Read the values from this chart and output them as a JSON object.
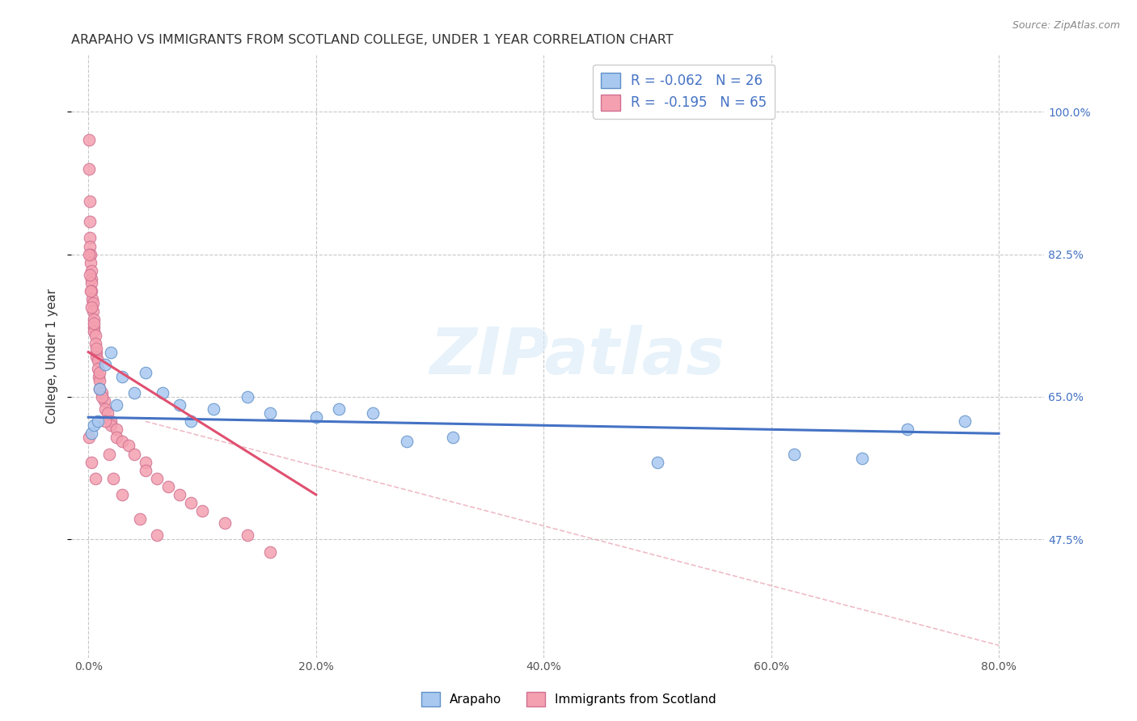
{
  "title": "ARAPAHO VS IMMIGRANTS FROM SCOTLAND COLLEGE, UNDER 1 YEAR CORRELATION CHART",
  "source": "Source: ZipAtlas.com",
  "ylabel": "College, Under 1 year",
  "x_tick_values": [
    0.0,
    20.0,
    40.0,
    60.0,
    80.0
  ],
  "y_tick_values": [
    47.5,
    65.0,
    82.5,
    100.0
  ],
  "xlim": [
    -1.5,
    84.0
  ],
  "ylim": [
    33.0,
    107.0
  ],
  "background_color": "#ffffff",
  "grid_color": "#c8c8c8",
  "blue_line_color": "#4472c4",
  "pink_line_color": "#e05070",
  "blue_dot_color": "#a8c8f0",
  "pink_dot_color": "#f4a0b0",
  "blue_dot_edge": "#6090c8",
  "pink_dot_edge": "#d07090",
  "watermark_text": "ZIPatlas",
  "blue_line_x": [
    0.0,
    80.0
  ],
  "blue_line_y": [
    62.5,
    60.5
  ],
  "pink_line_x": [
    0.0,
    20.0
  ],
  "pink_line_y": [
    70.5,
    53.0
  ],
  "diag_line_x": [
    5.0,
    80.0
  ],
  "diag_line_y": [
    62.0,
    34.5
  ],
  "arapaho_x": [
    0.3,
    0.5,
    0.8,
    1.0,
    1.5,
    2.0,
    3.0,
    4.0,
    5.0,
    6.5,
    8.0,
    9.0,
    11.0,
    14.0,
    16.0,
    20.0,
    22.0,
    25.0,
    28.0,
    32.0,
    50.0,
    62.0,
    68.0,
    72.0,
    77.0,
    2.5
  ],
  "arapaho_y": [
    60.5,
    61.5,
    62.0,
    66.0,
    69.0,
    70.5,
    67.5,
    65.5,
    68.0,
    65.5,
    64.0,
    62.0,
    63.5,
    65.0,
    63.0,
    62.5,
    63.5,
    63.0,
    59.5,
    60.0,
    57.0,
    58.0,
    57.5,
    61.0,
    62.0,
    64.0
  ],
  "scotland_x": [
    0.05,
    0.05,
    0.1,
    0.1,
    0.15,
    0.15,
    0.2,
    0.2,
    0.25,
    0.25,
    0.3,
    0.3,
    0.35,
    0.4,
    0.4,
    0.45,
    0.5,
    0.5,
    0.6,
    0.6,
    0.7,
    0.7,
    0.8,
    0.8,
    0.9,
    1.0,
    1.0,
    1.2,
    1.4,
    1.5,
    1.7,
    2.0,
    2.0,
    2.5,
    2.5,
    3.0,
    3.5,
    4.0,
    5.0,
    5.0,
    6.0,
    7.0,
    8.0,
    9.0,
    10.0,
    12.0,
    14.0,
    16.0,
    0.05,
    0.1,
    0.2,
    0.3,
    0.5,
    0.7,
    1.0,
    1.2,
    1.5,
    0.05,
    1.8,
    2.2,
    3.0,
    4.5,
    6.0,
    0.3,
    0.6
  ],
  "scotland_y": [
    96.5,
    93.0,
    89.0,
    86.5,
    84.5,
    83.5,
    82.5,
    81.5,
    80.5,
    79.5,
    79.0,
    78.0,
    77.0,
    76.5,
    75.5,
    74.5,
    73.5,
    73.0,
    72.5,
    71.5,
    70.5,
    70.0,
    69.5,
    68.5,
    67.5,
    67.0,
    66.0,
    65.5,
    64.5,
    63.5,
    63.0,
    62.0,
    61.5,
    61.0,
    60.0,
    59.5,
    59.0,
    58.0,
    57.0,
    56.0,
    55.0,
    54.0,
    53.0,
    52.0,
    51.0,
    49.5,
    48.0,
    46.0,
    82.5,
    80.0,
    78.0,
    76.0,
    74.0,
    71.0,
    68.0,
    65.0,
    62.0,
    60.0,
    58.0,
    55.0,
    53.0,
    50.0,
    48.0,
    57.0,
    55.0
  ]
}
